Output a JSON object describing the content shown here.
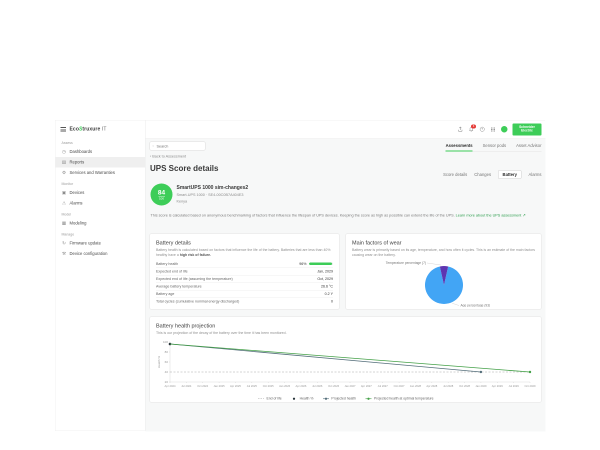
{
  "brand": {
    "prefix": "Eco",
    "glyph": "S",
    "suffix": "truxure",
    "it": " IT"
  },
  "sidebar": {
    "sections": [
      {
        "label": "Assess",
        "items": [
          {
            "label": "Dashboards",
            "icon": "dashboard-icon"
          },
          {
            "label": "Reports",
            "icon": "reports-icon",
            "active": true
          },
          {
            "label": "Services and Warranties",
            "icon": "services-icon"
          }
        ]
      },
      {
        "label": "Monitor",
        "items": [
          {
            "label": "Devices",
            "icon": "devices-icon"
          },
          {
            "label": "Alarms",
            "icon": "alarms-icon"
          }
        ]
      },
      {
        "label": "Model",
        "items": [
          {
            "label": "Modeling",
            "icon": "modeling-icon"
          }
        ]
      },
      {
        "label": "Manage",
        "items": [
          {
            "label": "Firmware update",
            "icon": "firmware-update-icon"
          },
          {
            "label": "Device configuration",
            "icon": "device-configuration-icon"
          }
        ]
      }
    ]
  },
  "topbar": {
    "badge_count": "3",
    "logo_line1": "Schneider",
    "logo_line2": "Electric"
  },
  "filter": {
    "search_placeholder": "Search"
  },
  "primary_tabs": [
    {
      "label": "Assessments",
      "active": true
    },
    {
      "label": "Sensor pods"
    },
    {
      "label": "Asset Advisor"
    }
  ],
  "breadcrumb": {
    "label": "‹ Back to Assessment"
  },
  "page_title": "UPS Score details",
  "secondary_tabs": [
    {
      "label": "Score details"
    },
    {
      "label": "Changes"
    },
    {
      "label": "Battery",
      "active": true
    },
    {
      "label": "Alarms"
    }
  ],
  "score": {
    "value": "84",
    "max": "100",
    "device_name": "SmartUPS 1000 sim-changes2",
    "device_model": "Smart-UPS 1000 · SE4-00C0B7A404E3",
    "location": "Kenya",
    "description": "This score is calculated based on anonymous benchmarking of factors that influence the lifespan of UPS devices. Keeping the score as high as possible can extend the life of the UPS. ",
    "link_label": "Learn more about the UPS assessment ↗"
  },
  "battery_details": {
    "title": "Battery details",
    "description": "Battery health is calculated based on factors that influence the life of the battery. Batteries that are less than 40% healthy have a ",
    "description_bold": "high risk of failure.",
    "rows": [
      {
        "label": "Battery health",
        "value": "96%",
        "bar_pct": 96
      },
      {
        "label": "Expected end of life",
        "value": "Jan, 2029"
      },
      {
        "label": "Expected end of life (assuming the temperature)",
        "value": "Oct, 2029"
      },
      {
        "label": "Average battery temperature",
        "value": "26.6 °C"
      },
      {
        "label": "Battery age",
        "value": "0.2 Y"
      },
      {
        "label": "Total cycles (cumulative nominal energy discharged)",
        "value": "0"
      }
    ]
  },
  "wear": {
    "title": "Main factors of wear",
    "description": "Battery wear is primarily based on its age, temperature, and how often it cycles. This is an estimate of the main factors causing wear on the battery."
  },
  "projection": {
    "title": "Battery health projection",
    "description": "This is our projection of the decay of the battery over the time it has been monitored."
  },
  "chart_data": [
    {
      "type": "pie",
      "title": "Main factors of wear",
      "slices": [
        {
          "label": "Age percentage",
          "value": 93,
          "color": "#42a5f5"
        },
        {
          "label": "Temperature percentage",
          "value": 7,
          "color": "#5e35b1"
        }
      ],
      "labels_shown": [
        "Age percentage (93)",
        "Temperature percentage (7)"
      ]
    },
    {
      "type": "line",
      "title": "Battery health projection",
      "xlabel": "",
      "ylabel": "Health %",
      "ylim": [
        20,
        100
      ],
      "yticks": [
        20,
        40,
        60,
        80,
        100
      ],
      "x": [
        "Apr 2024",
        "Jul 2024",
        "Oct 2024",
        "Jan 2025",
        "Apr 2025",
        "Jul 2025",
        "Oct 2025",
        "Jan 2026",
        "Apr 2026",
        "Jul 2026",
        "Oct 2026",
        "Jan 2027",
        "Apr 2027",
        "Jul 2027",
        "Oct 2027",
        "Jan 2028",
        "Apr 2028",
        "Jul 2028",
        "Oct 2028",
        "Jan 2029",
        "Apr 2029",
        "Jul 2029",
        "Oct 2029"
      ],
      "series": [
        {
          "name": "End of life",
          "style": "dashed",
          "color": "#a8a8a8",
          "constant": 40
        },
        {
          "name": "Health %",
          "style": "point",
          "color": "#263238",
          "points": [
            [
              "Apr 2024",
              96
            ]
          ]
        },
        {
          "name": "Projected health",
          "style": "line",
          "color": "#546e7a",
          "points": [
            [
              "Apr 2024",
              96
            ],
            [
              "Jan 2029",
              40
            ]
          ]
        },
        {
          "name": "Projected health at optimal temperature",
          "style": "line",
          "color": "#43a047",
          "points": [
            [
              "Apr 2024",
              96
            ],
            [
              "Oct 2029",
              40
            ]
          ]
        }
      ],
      "legend_position": "bottom",
      "grid": false
    }
  ],
  "colors": {
    "accent": "#3dcd58",
    "link": "#2f9e4f",
    "badge": "#e53935",
    "pie_age": "#42a5f5",
    "pie_temperature": "#5e35b1",
    "line_projected": "#546e7a",
    "line_optimal": "#43a047",
    "end_of_life": "#a8a8a8",
    "health_point": "#263238"
  }
}
